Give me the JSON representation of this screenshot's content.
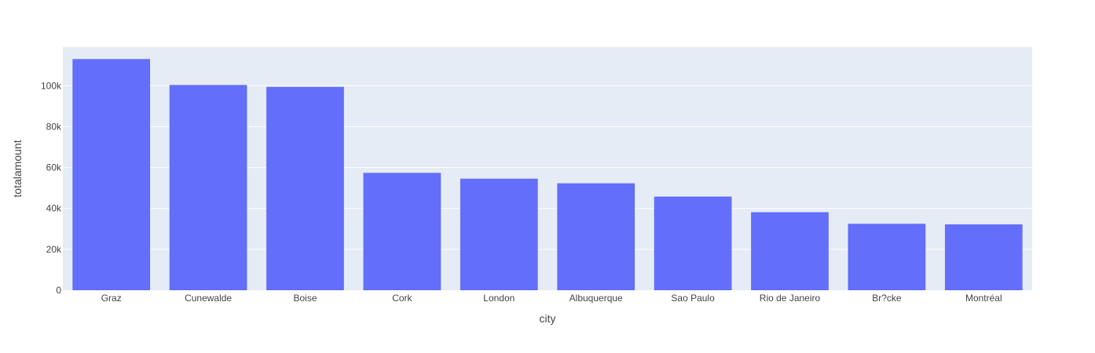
{
  "chart_data": {
    "type": "bar",
    "categories": [
      "Graz",
      "Cunewalde",
      "Boise",
      "Cork",
      "London",
      "Albuquerque",
      "Sao Paulo",
      "Rio de Janeiro",
      "Br?cke",
      "Montréal"
    ],
    "values": [
      113050,
      100350,
      99450,
      57400,
      54550,
      52300,
      45800,
      38150,
      32500,
      32200
    ],
    "xlabel": "city",
    "ylabel": "totalamount",
    "ylim": [
      0,
      118900
    ],
    "yticks": [
      0,
      20000,
      40000,
      60000,
      80000,
      100000
    ],
    "ytick_labels": [
      "0",
      "20k",
      "40k",
      "60k",
      "80k",
      "100k"
    ],
    "grid": true,
    "colors": {
      "bar": "#636efa",
      "plot_bg": "#e5ecf6",
      "grid": "#ffffff",
      "text": "#444444"
    }
  }
}
